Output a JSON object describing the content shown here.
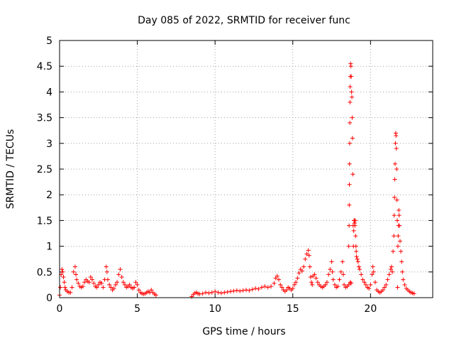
{
  "chart_data": {
    "type": "scatter",
    "title": "Day 085 of 2022, SRMTID for receiver func",
    "xlabel": "GPS time / hours",
    "ylabel": "SRMTID / TECUs",
    "xlim": [
      0,
      24
    ],
    "ylim": [
      0,
      5
    ],
    "grid": true,
    "marker": "+",
    "color": "#ff0000",
    "x_ticks": [
      {
        "value": 0,
        "label": "0"
      },
      {
        "value": 5,
        "label": "5"
      },
      {
        "value": 10,
        "label": "10"
      },
      {
        "value": 15,
        "label": "15"
      },
      {
        "value": 20,
        "label": "20"
      }
    ],
    "y_ticks": [
      {
        "value": 0,
        "label": "0"
      },
      {
        "value": 0.5,
        "label": "0.5"
      },
      {
        "value": 1,
        "label": "1"
      },
      {
        "value": 1.5,
        "label": "1.5"
      },
      {
        "value": 2,
        "label": "2"
      },
      {
        "value": 2.5,
        "label": "2.5"
      },
      {
        "value": 3,
        "label": "3"
      },
      {
        "value": 3.5,
        "label": "3.5"
      },
      {
        "value": 4,
        "label": "4"
      },
      {
        "value": 4.5,
        "label": "4.5"
      },
      {
        "value": 5,
        "label": "5"
      }
    ],
    "series": [
      {
        "name": "SRMTID",
        "points": [
          [
            0.0,
            0.05
          ],
          [
            0.05,
            0.2
          ],
          [
            0.1,
            0.45
          ],
          [
            0.15,
            0.55
          ],
          [
            0.2,
            0.5
          ],
          [
            0.25,
            0.4
          ],
          [
            0.3,
            0.3
          ],
          [
            0.35,
            0.2
          ],
          [
            0.4,
            0.15
          ],
          [
            0.5,
            0.12
          ],
          [
            0.6,
            0.1
          ],
          [
            0.7,
            0.1
          ],
          [
            0.8,
            0.2
          ],
          [
            0.9,
            0.5
          ],
          [
            1.0,
            0.6
          ],
          [
            1.05,
            0.45
          ],
          [
            1.1,
            0.35
          ],
          [
            1.2,
            0.28
          ],
          [
            1.3,
            0.22
          ],
          [
            1.4,
            0.2
          ],
          [
            1.5,
            0.22
          ],
          [
            1.6,
            0.3
          ],
          [
            1.7,
            0.35
          ],
          [
            1.8,
            0.32
          ],
          [
            1.9,
            0.3
          ],
          [
            2.0,
            0.4
          ],
          [
            2.1,
            0.35
          ],
          [
            2.2,
            0.28
          ],
          [
            2.3,
            0.22
          ],
          [
            2.4,
            0.2
          ],
          [
            2.5,
            0.25
          ],
          [
            2.6,
            0.3
          ],
          [
            2.7,
            0.28
          ],
          [
            2.8,
            0.2
          ],
          [
            2.9,
            0.35
          ],
          [
            3.0,
            0.6
          ],
          [
            3.05,
            0.5
          ],
          [
            3.1,
            0.35
          ],
          [
            3.2,
            0.25
          ],
          [
            3.3,
            0.2
          ],
          [
            3.4,
            0.15
          ],
          [
            3.5,
            0.18
          ],
          [
            3.6,
            0.25
          ],
          [
            3.7,
            0.3
          ],
          [
            3.8,
            0.45
          ],
          [
            3.9,
            0.55
          ],
          [
            4.0,
            0.4
          ],
          [
            4.1,
            0.3
          ],
          [
            4.2,
            0.25
          ],
          [
            4.3,
            0.2
          ],
          [
            4.4,
            0.22
          ],
          [
            4.5,
            0.25
          ],
          [
            4.6,
            0.2
          ],
          [
            4.7,
            0.18
          ],
          [
            4.8,
            0.2
          ],
          [
            4.9,
            0.3
          ],
          [
            5.0,
            0.25
          ],
          [
            5.1,
            0.15
          ],
          [
            5.2,
            0.1
          ],
          [
            5.3,
            0.08
          ],
          [
            5.4,
            0.07
          ],
          [
            5.5,
            0.08
          ],
          [
            5.6,
            0.1
          ],
          [
            5.7,
            0.12
          ],
          [
            5.8,
            0.1
          ],
          [
            5.9,
            0.15
          ],
          [
            6.0,
            0.1
          ],
          [
            6.1,
            0.07
          ],
          [
            6.2,
            0.05
          ],
          [
            8.5,
            0.02
          ],
          [
            8.6,
            0.06
          ],
          [
            8.7,
            0.09
          ],
          [
            8.8,
            0.1
          ],
          [
            8.9,
            0.08
          ],
          [
            9.0,
            0.07
          ],
          [
            9.2,
            0.08
          ],
          [
            9.4,
            0.1
          ],
          [
            9.6,
            0.09
          ],
          [
            9.8,
            0.1
          ],
          [
            10.0,
            0.12
          ],
          [
            10.2,
            0.1
          ],
          [
            10.4,
            0.09
          ],
          [
            10.6,
            0.1
          ],
          [
            10.8,
            0.11
          ],
          [
            11.0,
            0.12
          ],
          [
            11.2,
            0.13
          ],
          [
            11.4,
            0.14
          ],
          [
            11.6,
            0.13
          ],
          [
            11.8,
            0.14
          ],
          [
            12.0,
            0.15
          ],
          [
            12.2,
            0.14
          ],
          [
            12.4,
            0.16
          ],
          [
            12.6,
            0.18
          ],
          [
            12.8,
            0.17
          ],
          [
            13.0,
            0.2
          ],
          [
            13.2,
            0.22
          ],
          [
            13.4,
            0.2
          ],
          [
            13.6,
            0.22
          ],
          [
            13.8,
            0.28
          ],
          [
            13.9,
            0.38
          ],
          [
            14.0,
            0.42
          ],
          [
            14.1,
            0.35
          ],
          [
            14.2,
            0.25
          ],
          [
            14.3,
            0.2
          ],
          [
            14.4,
            0.15
          ],
          [
            14.5,
            0.12
          ],
          [
            14.6,
            0.15
          ],
          [
            14.7,
            0.2
          ],
          [
            14.8,
            0.18
          ],
          [
            14.9,
            0.15
          ],
          [
            15.0,
            0.18
          ],
          [
            15.1,
            0.25
          ],
          [
            15.2,
            0.3
          ],
          [
            15.3,
            0.38
          ],
          [
            15.4,
            0.48
          ],
          [
            15.5,
            0.55
          ],
          [
            15.6,
            0.52
          ],
          [
            15.7,
            0.6
          ],
          [
            15.8,
            0.75
          ],
          [
            15.9,
            0.85
          ],
          [
            16.0,
            0.92
          ],
          [
            16.05,
            0.82
          ],
          [
            16.1,
            0.6
          ],
          [
            16.15,
            0.4
          ],
          [
            16.2,
            0.3
          ],
          [
            16.25,
            0.25
          ],
          [
            16.3,
            0.42
          ],
          [
            16.4,
            0.45
          ],
          [
            16.5,
            0.38
          ],
          [
            16.6,
            0.3
          ],
          [
            16.7,
            0.25
          ],
          [
            16.8,
            0.22
          ],
          [
            16.9,
            0.2
          ],
          [
            17.0,
            0.22
          ],
          [
            17.1,
            0.25
          ],
          [
            17.2,
            0.3
          ],
          [
            17.3,
            0.45
          ],
          [
            17.4,
            0.55
          ],
          [
            17.5,
            0.7
          ],
          [
            17.55,
            0.5
          ],
          [
            17.6,
            0.35
          ],
          [
            17.7,
            0.25
          ],
          [
            17.8,
            0.2
          ],
          [
            17.9,
            0.22
          ],
          [
            18.0,
            0.35
          ],
          [
            18.1,
            0.5
          ],
          [
            18.2,
            0.7
          ],
          [
            18.25,
            0.45
          ],
          [
            18.3,
            0.25
          ],
          [
            18.4,
            0.2
          ],
          [
            18.5,
            0.22
          ],
          [
            18.6,
            0.25
          ],
          [
            18.7,
            0.3
          ],
          [
            18.75,
            0.28
          ],
          [
            18.6,
            1.0
          ],
          [
            18.62,
            1.4
          ],
          [
            18.63,
            1.8
          ],
          [
            18.64,
            2.2
          ],
          [
            18.65,
            2.6
          ],
          [
            18.66,
            3.0
          ],
          [
            18.67,
            3.4
          ],
          [
            18.68,
            3.8
          ],
          [
            18.69,
            4.1
          ],
          [
            18.7,
            4.3
          ],
          [
            18.72,
            4.55
          ],
          [
            18.74,
            4.5
          ],
          [
            18.76,
            4.3
          ],
          [
            18.78,
            4.0
          ],
          [
            18.8,
            3.9
          ],
          [
            18.82,
            3.5
          ],
          [
            18.84,
            3.1
          ],
          [
            18.86,
            2.4
          ],
          [
            18.88,
            1.4
          ],
          [
            18.9,
            1.0
          ],
          [
            18.92,
            1.3
          ],
          [
            18.94,
            1.5
          ],
          [
            18.96,
            1.5
          ],
          [
            18.98,
            1.45
          ],
          [
            19.0,
            1.4
          ],
          [
            19.02,
            1.5
          ],
          [
            19.04,
            1.2
          ],
          [
            19.06,
            1.0
          ],
          [
            19.08,
            0.9
          ],
          [
            19.1,
            0.8
          ],
          [
            19.15,
            0.75
          ],
          [
            19.2,
            0.7
          ],
          [
            19.25,
            0.6
          ],
          [
            19.3,
            0.55
          ],
          [
            19.4,
            0.45
          ],
          [
            19.5,
            0.35
          ],
          [
            19.6,
            0.3
          ],
          [
            19.7,
            0.25
          ],
          [
            19.8,
            0.2
          ],
          [
            19.9,
            0.18
          ],
          [
            20.0,
            0.25
          ],
          [
            20.1,
            0.45
          ],
          [
            20.15,
            0.6
          ],
          [
            20.2,
            0.5
          ],
          [
            20.3,
            0.3
          ],
          [
            20.4,
            0.15
          ],
          [
            20.5,
            0.12
          ],
          [
            20.6,
            0.1
          ],
          [
            20.7,
            0.12
          ],
          [
            20.8,
            0.15
          ],
          [
            20.9,
            0.2
          ],
          [
            21.0,
            0.25
          ],
          [
            21.1,
            0.35
          ],
          [
            21.2,
            0.45
          ],
          [
            21.3,
            0.55
          ],
          [
            21.35,
            0.6
          ],
          [
            21.4,
            0.5
          ],
          [
            21.45,
            0.9
          ],
          [
            21.5,
            1.2
          ],
          [
            21.52,
            1.6
          ],
          [
            21.54,
            1.95
          ],
          [
            21.56,
            2.3
          ],
          [
            21.58,
            2.6
          ],
          [
            21.6,
            3.0
          ],
          [
            21.62,
            3.2
          ],
          [
            21.64,
            3.15
          ],
          [
            21.66,
            2.9
          ],
          [
            21.68,
            2.5
          ],
          [
            21.7,
            1.9
          ],
          [
            21.72,
            1.5
          ],
          [
            21.74,
            0.2
          ],
          [
            21.76,
            1.0
          ],
          [
            21.78,
            1.2
          ],
          [
            21.8,
            1.4
          ],
          [
            21.82,
            1.7
          ],
          [
            21.84,
            1.6
          ],
          [
            21.86,
            1.4
          ],
          [
            21.9,
            1.1
          ],
          [
            21.95,
            0.9
          ],
          [
            22.0,
            0.7
          ],
          [
            22.05,
            0.5
          ],
          [
            22.1,
            0.35
          ],
          [
            22.2,
            0.25
          ],
          [
            22.3,
            0.18
          ],
          [
            22.4,
            0.15
          ],
          [
            22.5,
            0.12
          ],
          [
            22.6,
            0.1
          ],
          [
            22.7,
            0.09
          ],
          [
            22.8,
            0.08
          ]
        ]
      }
    ]
  }
}
